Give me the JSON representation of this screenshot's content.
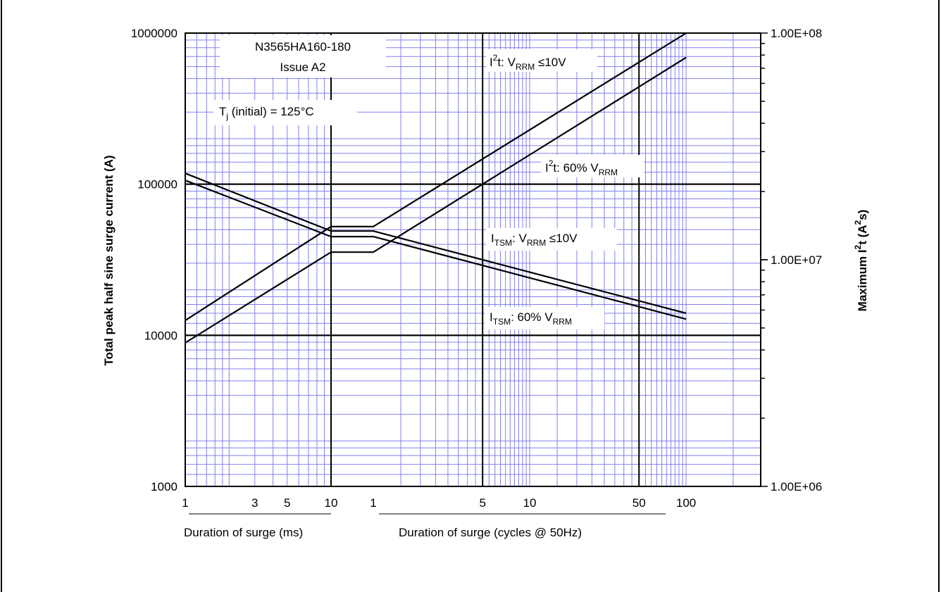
{
  "chart_data": {
    "type": "line",
    "title": "N3565HA160-180",
    "subtitle": "Issue A2",
    "condition": {
      "label": "T",
      "sub": "j",
      "rest": " (initial) = 125°C"
    },
    "ylabel_left": "Total peak half sine surge current (A)",
    "ylabel_right": {
      "main": "Maximum I",
      "sup1": "2",
      "mid": "t (A",
      "sup2": "2",
      "end": "s)"
    },
    "y_scale": "log",
    "ylim": [
      1000,
      1000000
    ],
    "y2_scale": "log",
    "y2lim": [
      1000000,
      100000000
    ],
    "left_ticks": [
      "1000",
      "10000",
      "100000",
      "1000000"
    ],
    "right_ticks": [
      "1.00E+06",
      "1.00E+07",
      "1.00E+08"
    ],
    "x_segments": [
      {
        "unit": "ms",
        "xlim": [
          1,
          10
        ],
        "tick_labels": [
          "1",
          "3",
          "5",
          "10"
        ],
        "tick_values": [
          1,
          3,
          5,
          10
        ],
        "xlabel": "Duration of surge (ms)"
      },
      {
        "unit": "cycles @ 50Hz",
        "xlim": [
          1,
          300
        ],
        "tick_labels": [
          "1",
          "5",
          "10",
          "50",
          "100"
        ],
        "tick_values": [
          1,
          5,
          10,
          50,
          100
        ],
        "xlabel": "Duration of surge (cycles @ 50Hz)"
      }
    ],
    "series": [
      {
        "key": "itsm10",
        "axis": "left",
        "label": {
          "pre": "I",
          "sub": "TSM",
          "mid": ": V",
          "sub2": "RRM",
          "end": " ≤10V"
        },
        "points": [
          {
            "seg": 0,
            "x": 1,
            "y": 118000
          },
          {
            "seg": 0,
            "x": 10,
            "y": 49000
          },
          {
            "seg": 1,
            "x": 1,
            "y": 49000
          },
          {
            "seg": 1,
            "x": 100,
            "y": 14000
          }
        ]
      },
      {
        "key": "itsm60",
        "axis": "left",
        "label": {
          "pre": "I",
          "sub": "TSM",
          "mid": ": 60% V",
          "sub2": "RRM",
          "end": ""
        },
        "points": [
          {
            "seg": 0,
            "x": 1,
            "y": 106000
          },
          {
            "seg": 0,
            "x": 10,
            "y": 45000
          },
          {
            "seg": 1,
            "x": 1,
            "y": 45000
          },
          {
            "seg": 1,
            "x": 100,
            "y": 12800
          }
        ]
      },
      {
        "key": "i2t10",
        "axis": "right",
        "label": {
          "pre": "I",
          "sup": "2",
          "mid": "t: V",
          "sub2": "RRM",
          "end": " ≤10V"
        },
        "points": [
          {
            "seg": 0,
            "x": 1,
            "y": 5400000
          },
          {
            "seg": 0,
            "x": 10,
            "y": 14000000
          },
          {
            "seg": 1,
            "x": 1,
            "y": 14000000
          },
          {
            "seg": 1,
            "x": 100,
            "y": 100000000
          }
        ]
      },
      {
        "key": "i2t60",
        "axis": "right",
        "label": {
          "pre": "I",
          "sup": "2",
          "mid": "t: 60% V",
          "sub2": "RRM",
          "end": ""
        },
        "points": [
          {
            "seg": 0,
            "x": 1,
            "y": 4300000
          },
          {
            "seg": 0,
            "x": 10,
            "y": 10800000
          },
          {
            "seg": 1,
            "x": 1,
            "y": 10800000
          },
          {
            "seg": 1,
            "x": 100,
            "y": 78000000
          }
        ]
      }
    ],
    "grid": true,
    "colors": {
      "grid_minor": "#8080f0",
      "grid_major": "#000000",
      "line": "#000000"
    }
  }
}
